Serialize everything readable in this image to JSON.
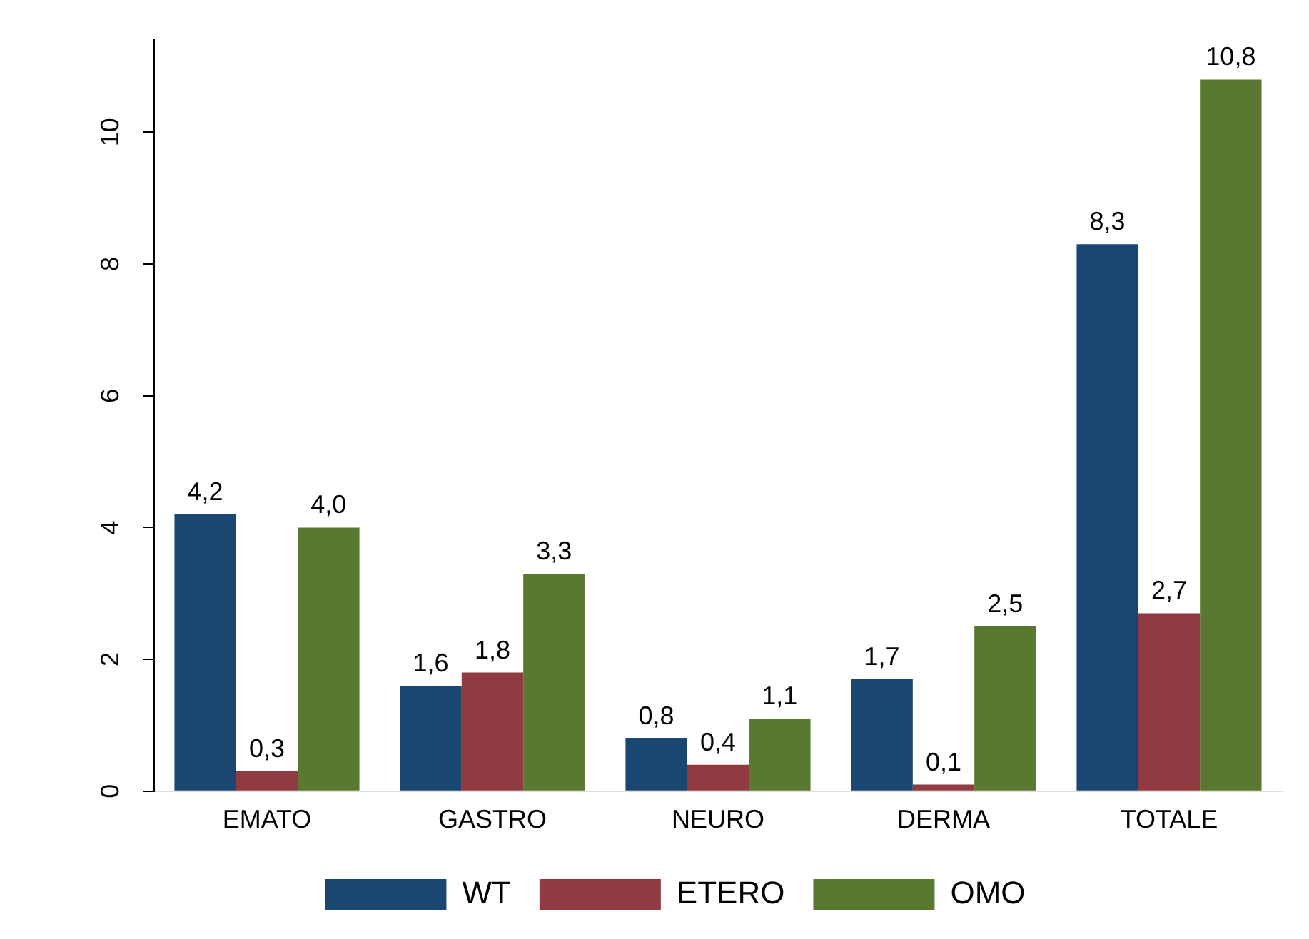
{
  "chart_data": {
    "type": "bar",
    "categories": [
      "EMATO",
      "GASTRO",
      "NEURO",
      "DERMA",
      "TOTALE"
    ],
    "series": [
      {
        "name": "WT",
        "color": "#1a4672",
        "values": [
          4.2,
          1.6,
          0.8,
          1.7,
          8.3
        ],
        "value_labels": [
          "4,2",
          "1,6",
          "0,8",
          "1,7",
          "8,3"
        ]
      },
      {
        "name": "ETERO",
        "color": "#903a42",
        "values": [
          0.3,
          1.8,
          0.4,
          0.1,
          2.7
        ],
        "value_labels": [
          "0,3",
          "1,8",
          "0,4",
          "0,1",
          "2,7"
        ]
      },
      {
        "name": "OMO",
        "color": "#58792f",
        "values": [
          4.0,
          3.3,
          1.1,
          2.5,
          10.8
        ],
        "value_labels": [
          "4,0",
          "3,3",
          "1,1",
          "2,5",
          "10,8"
        ]
      }
    ],
    "ylim": [
      0,
      11.4
    ],
    "yticks": [
      0,
      2,
      4,
      6,
      8,
      10
    ],
    "grid": false,
    "legend": "bottom"
  }
}
